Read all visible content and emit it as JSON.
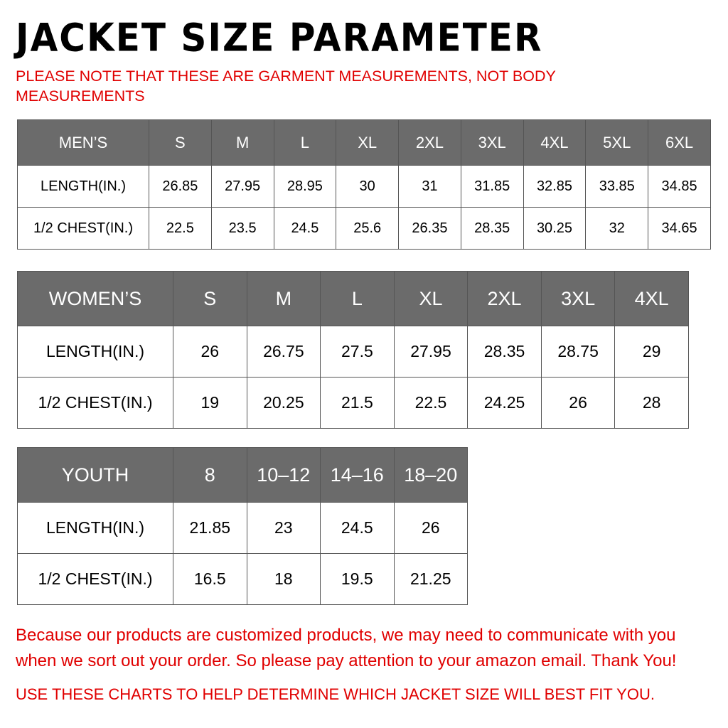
{
  "title": "JACKET SIZE PARAMETER",
  "note": "PLEASE NOTE THAT THESE ARE GARMENT MEASUREMENTS, NOT BODY MEASUREMENTS",
  "header_bg": "#6b6b6b",
  "accent_red": "#e00000",
  "tables": {
    "men": {
      "header": [
        "MEN’S",
        "S",
        "M",
        "L",
        "XL",
        "2XL",
        "3XL",
        "4XL",
        "5XL",
        "6XL"
      ],
      "rows": [
        [
          "LENGTH(IN.)",
          "26.85",
          "27.95",
          "28.95",
          "30",
          "31",
          "31.85",
          "32.85",
          "33.85",
          "34.85"
        ],
        [
          "1/2 CHEST(IN.)",
          "22.5",
          "23.5",
          "24.5",
          "25.6",
          "26.35",
          "28.35",
          "30.25",
          "32",
          "34.65"
        ]
      ]
    },
    "women": {
      "header": [
        "WOMEN’S",
        "S",
        "M",
        "L",
        "XL",
        "2XL",
        "3XL",
        "4XL"
      ],
      "rows": [
        [
          "LENGTH(IN.)",
          "26",
          "26.75",
          "27.5",
          "27.95",
          "28.35",
          "28.75",
          "29"
        ],
        [
          "1/2 CHEST(IN.)",
          "19",
          "20.25",
          "21.5",
          "22.5",
          "24.25",
          "26",
          "28"
        ]
      ]
    },
    "youth": {
      "header": [
        "YOUTH",
        "8",
        "10–12",
        "14–16",
        "18–20"
      ],
      "rows": [
        [
          "LENGTH(IN.)",
          "21.85",
          "23",
          "24.5",
          "26"
        ],
        [
          "1/2 CHEST(IN.)",
          "16.5",
          "18",
          "19.5",
          "21.25"
        ]
      ]
    }
  },
  "footer": {
    "message": "Because our products are customized products, we may need to communicate with you when we sort out your order. So please pay attention to your amazon email. Thank You!",
    "instruction": "USE THESE CHARTS TO HELP DETERMINE WHICH JACKET SIZE WILL BEST FIT YOU."
  }
}
